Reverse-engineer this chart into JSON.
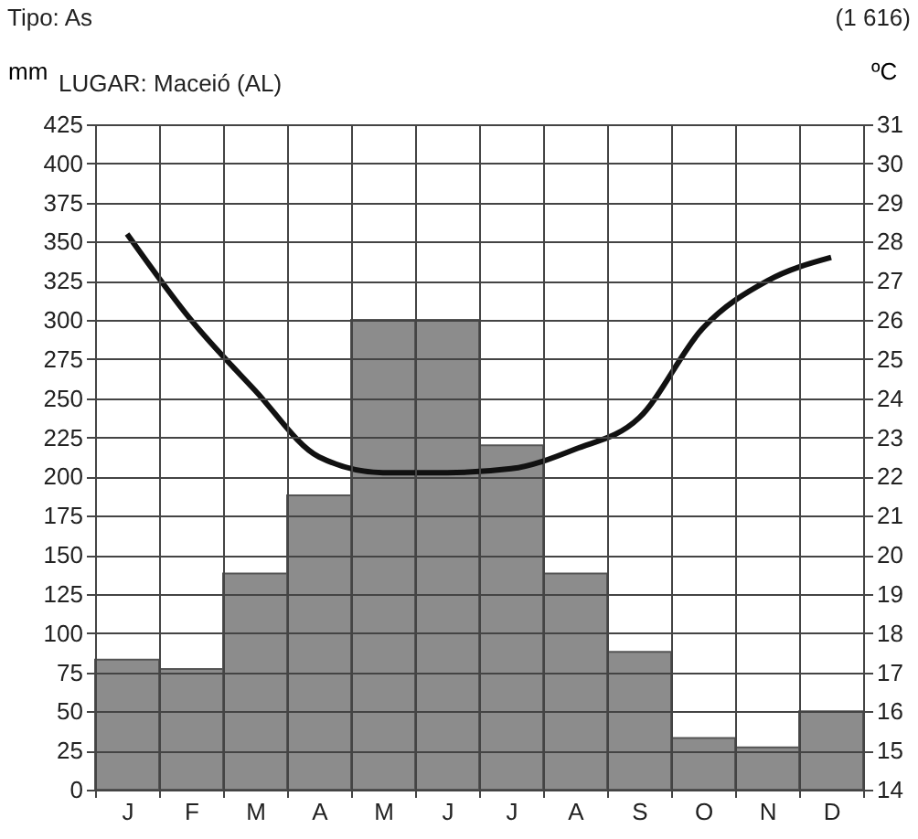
{
  "chart_data": {
    "type": "bar",
    "title": "LUGAR: Maceió (AL)",
    "ylabel": "mm",
    "y2label": "ºC",
    "annotations": [
      "Tipo: As",
      "(1 616)"
    ],
    "categories": [
      "J",
      "F",
      "M",
      "A",
      "M",
      "J",
      "J",
      "A",
      "S",
      "O",
      "N",
      "D"
    ],
    "series": [
      {
        "color": "#8c8c8c",
        "values": [
          83,
          77,
          138,
          188,
          300,
          300,
          220,
          138,
          88,
          33,
          27,
          50
        ]
      },
      {
        "type": "line",
        "axis": "y2",
        "color": "#111111",
        "values": [
          28.2,
          26.0,
          24.2,
          22.5,
          22.1,
          22.1,
          22.2,
          22.7,
          23.5,
          25.8,
          27.0,
          27.6
        ]
      }
    ],
    "ylim": [
      0,
      425
    ],
    "yticks": [
      0,
      25,
      50,
      75,
      100,
      125,
      150,
      175,
      200,
      225,
      250,
      275,
      300,
      325,
      350,
      375,
      400,
      425
    ],
    "y2lim": [
      14,
      31
    ],
    "y2ticks": [
      14,
      15,
      16,
      17,
      18,
      19,
      20,
      21,
      22,
      23,
      24,
      25,
      26,
      27,
      28,
      29,
      30,
      31
    ],
    "grid": true
  }
}
